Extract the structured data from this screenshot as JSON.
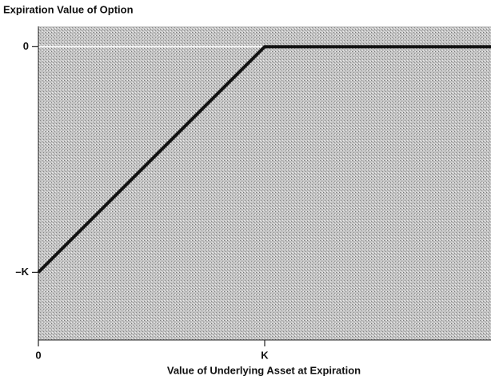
{
  "chart_data": {
    "type": "line",
    "title": "Expiration Value of Option",
    "x_label": "Value of Underlying Asset at Expiration",
    "x": [
      0,
      100,
      200
    ],
    "values": [
      -100,
      0,
      0
    ],
    "color": "#111111",
    "xlim": [
      0,
      200
    ],
    "ylim": [
      -130,
      9
    ],
    "xticks": [
      0,
      {
        "value": 100,
        "label": "K"
      }
    ],
    "yticks": [
      0,
      {
        "value": -100,
        "label": "–K"
      }
    ]
  }
}
